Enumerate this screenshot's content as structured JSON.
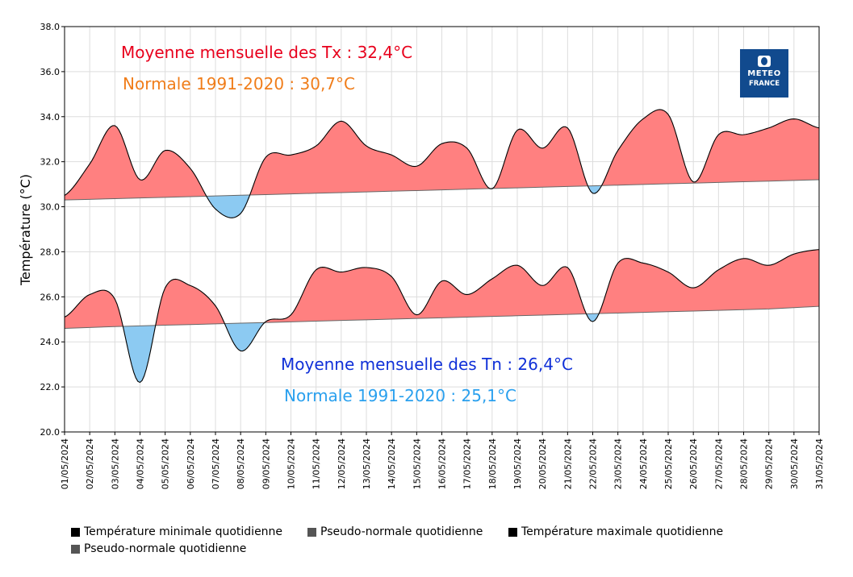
{
  "chart_data": {
    "type": "area",
    "ylabel": "Température (°C)",
    "ylim": [
      20,
      38
    ],
    "yticks": [
      "20.0",
      "22.0",
      "24.0",
      "26.0",
      "28.0",
      "30.0",
      "32.0",
      "34.0",
      "36.0",
      "38.0"
    ],
    "x": [
      "01/05/2024",
      "02/05/2024",
      "03/05/2024",
      "04/05/2024",
      "05/05/2024",
      "06/05/2024",
      "07/05/2024",
      "08/05/2024",
      "09/05/2024",
      "10/05/2024",
      "11/05/2024",
      "12/05/2024",
      "13/05/2024",
      "14/05/2024",
      "15/05/2024",
      "16/05/2024",
      "17/05/2024",
      "18/05/2024",
      "19/05/2024",
      "20/05/2024",
      "21/05/2024",
      "22/05/2024",
      "23/05/2024",
      "24/05/2024",
      "25/05/2024",
      "26/05/2024",
      "27/05/2024",
      "28/05/2024",
      "29/05/2024",
      "30/05/2024",
      "31/05/2024"
    ],
    "series": [
      {
        "name": "Température maximale quotidienne",
        "values": [
          30.5,
          31.9,
          33.6,
          31.2,
          32.5,
          31.7,
          29.9,
          29.7,
          32.2,
          32.3,
          32.7,
          33.8,
          32.7,
          32.3,
          31.8,
          32.8,
          32.6,
          30.8,
          33.4,
          32.6,
          33.5,
          30.6,
          32.5,
          33.9,
          34.1,
          31.1,
          33.2,
          33.2,
          33.5,
          33.9,
          33.5
        ]
      },
      {
        "name": "Pseudo-normale quotidienne",
        "values": [
          30.3,
          30.33,
          30.36,
          30.39,
          30.42,
          30.45,
          30.48,
          30.51,
          30.54,
          30.57,
          30.6,
          30.63,
          30.66,
          30.69,
          30.72,
          30.75,
          30.78,
          30.81,
          30.84,
          30.87,
          30.9,
          30.93,
          30.96,
          30.99,
          31.02,
          31.05,
          31.08,
          31.11,
          31.14,
          31.17,
          31.2
        ]
      },
      {
        "name": "Température minimale quotidienne",
        "values": [
          25.1,
          26.1,
          25.9,
          22.2,
          26.4,
          26.5,
          25.6,
          23.6,
          24.9,
          25.2,
          27.2,
          27.1,
          27.3,
          26.9,
          25.2,
          26.7,
          26.1,
          26.8,
          27.4,
          26.5,
          27.3,
          24.9,
          27.5,
          27.5,
          27.1,
          26.4,
          27.2,
          27.7,
          27.4,
          27.9,
          28.1
        ]
      },
      {
        "name": "Pseudo-normale quotidienne",
        "values": [
          24.6,
          24.64,
          24.68,
          24.71,
          24.74,
          24.77,
          24.8,
          24.83,
          24.86,
          24.89,
          24.92,
          24.95,
          24.98,
          25.01,
          25.04,
          25.07,
          25.1,
          25.13,
          25.16,
          25.19,
          25.22,
          25.25,
          25.28,
          25.31,
          25.34,
          25.37,
          25.4,
          25.43,
          25.46,
          25.52,
          25.58
        ]
      }
    ],
    "annotations": {
      "tx_mean": "Moyenne mensuelle des Tx : 32,4°C",
      "tx_normal": "Normale 1991-2020 : 30,7°C",
      "tn_mean": "Moyenne mensuelle des Tn : 26,4°C",
      "tn_normal": "Normale 1991-2020 : 25,1°C"
    },
    "colors": {
      "above": "#ff8080",
      "below": "#8ccaf2",
      "line": "#000000",
      "normal_line": "#666666",
      "tx_mean": "#e8001c",
      "tx_normal": "#f07d1a",
      "tn_mean": "#1030d8",
      "tn_normal": "#2aa0ee",
      "grid": "#dddddd"
    }
  },
  "legend": {
    "items": [
      {
        "label": "Température minimale quotidienne",
        "color": "#000000"
      },
      {
        "label": "Pseudo-normale quotidienne",
        "color": "#555555"
      },
      {
        "label": "Température maximale quotidienne",
        "color": "#000000"
      },
      {
        "label": "Pseudo-normale quotidienne",
        "color": "#555555"
      }
    ]
  },
  "logo": {
    "line1": "METEO",
    "line2": "FRANCE",
    "icon": "meteo-france-logo-icon"
  }
}
